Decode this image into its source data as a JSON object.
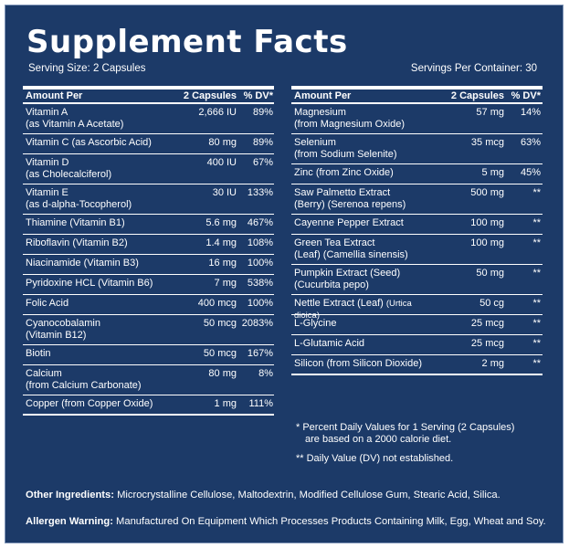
{
  "title": "Supplement Facts",
  "serving_size": "Serving Size: 2 Capsules",
  "servings_per_container": "Servings Per Container: 30",
  "headers": {
    "amount_per": "Amount Per",
    "serving": "2 Capsules",
    "dv": "% DV*"
  },
  "left_rows": [
    {
      "name": "Vitamin A",
      "sub": "(as Vitamin A Acetate)",
      "amount": "2,666 IU",
      "dv": "89%"
    },
    {
      "name": "Vitamin C (as Ascorbic Acid)",
      "sub": "",
      "amount": "80 mg",
      "dv": "89%"
    },
    {
      "name": "Vitamin D",
      "sub": "(as Cholecalciferol)",
      "amount": "400 IU",
      "dv": "67%"
    },
    {
      "name": "Vitamin E",
      "sub": "(as d-alpha-Tocopherol)",
      "amount": "30 IU",
      "dv": "133%"
    },
    {
      "name": "Thiamine (Vitamin B1)",
      "sub": "",
      "amount": "5.6 mg",
      "dv": "467%"
    },
    {
      "name": "Riboflavin (Vitamin B2)",
      "sub": "",
      "amount": "1.4 mg",
      "dv": "108%"
    },
    {
      "name": "Niacinamide (Vitamin B3)",
      "sub": "",
      "amount": "16 mg",
      "dv": "100%"
    },
    {
      "name": "Pyridoxine HCL (Vitamin B6)",
      "sub": "",
      "amount": "7 mg",
      "dv": "538%"
    },
    {
      "name": "Folic Acid",
      "sub": "",
      "amount": "400 mcg",
      "dv": "100%"
    },
    {
      "name": "Cyanocobalamin",
      "sub": "(Vitamin B12)",
      "amount": "50 mcg",
      "dv": "2083%"
    },
    {
      "name": "Biotin",
      "sub": "",
      "amount": "50 mcg",
      "dv": "167%"
    },
    {
      "name": "Calcium",
      "sub": "(from Calcium Carbonate)",
      "amount": "80 mg",
      "dv": "8%"
    },
    {
      "name": "Copper (from Copper Oxide)",
      "sub": "",
      "amount": "1 mg",
      "dv": "111%"
    }
  ],
  "right_rows": [
    {
      "name": "Magnesium",
      "sub": "(from Magnesium Oxide)",
      "amount": "57 mg",
      "dv": "14%"
    },
    {
      "name": "Selenium",
      "sub": "(from Sodium Selenite)",
      "amount": "35 mcg",
      "dv": "63%"
    },
    {
      "name": "Zinc (from Zinc Oxide)",
      "sub": "",
      "amount": "5 mg",
      "dv": "45%"
    },
    {
      "name": "Saw Palmetto Extract",
      "sub": "(Berry) (Serenoa repens)",
      "amount": "500 mg",
      "dv": "**"
    },
    {
      "name": "Cayenne Pepper Extract",
      "sub": "",
      "amount": "100 mg",
      "dv": "**"
    },
    {
      "name": "Green Tea Extract",
      "sub": "(Leaf) (Camellia sinensis)",
      "amount": "100 mg",
      "dv": "**"
    },
    {
      "name": "Pumpkin Extract (Seed)",
      "sub": "(Cucurbita pepo)",
      "amount": "50 mg",
      "dv": "**"
    },
    {
      "name": "Nettle Extract (Leaf)",
      "small": "(Urtica dioica)",
      "sub": "",
      "amount": "50 cg",
      "dv": "**"
    },
    {
      "name": "L-Glycine",
      "sub": "",
      "amount": "25 mcg",
      "dv": "**"
    },
    {
      "name": "L-Glutamic Acid",
      "sub": "",
      "amount": "25 mcg",
      "dv": "**"
    },
    {
      "name": "Silicon (from Silicon Dioxide)",
      "sub": "",
      "amount": "2 mg",
      "dv": "**"
    }
  ],
  "footnote_1_line1": "* Percent Daily Values for 1 Serving (2 Capsules)",
  "footnote_1_line2": "are based on a 2000 calorie diet.",
  "footnote_2": "** Daily Value (DV) not established.",
  "other_label": "Other Ingredients:",
  "other_text": "Microcrystalline Cellulose, Maltodextrin, Modified Cellulose Gum, Stearic Acid, Silica.",
  "allergen_label": "Allergen Warning:",
  "allergen_text": "Manufactured On Equipment Which Processes Products Containing Milk, Egg, Wheat and Soy.",
  "colors": {
    "background": "#1c3a68",
    "text": "#ffffff"
  }
}
